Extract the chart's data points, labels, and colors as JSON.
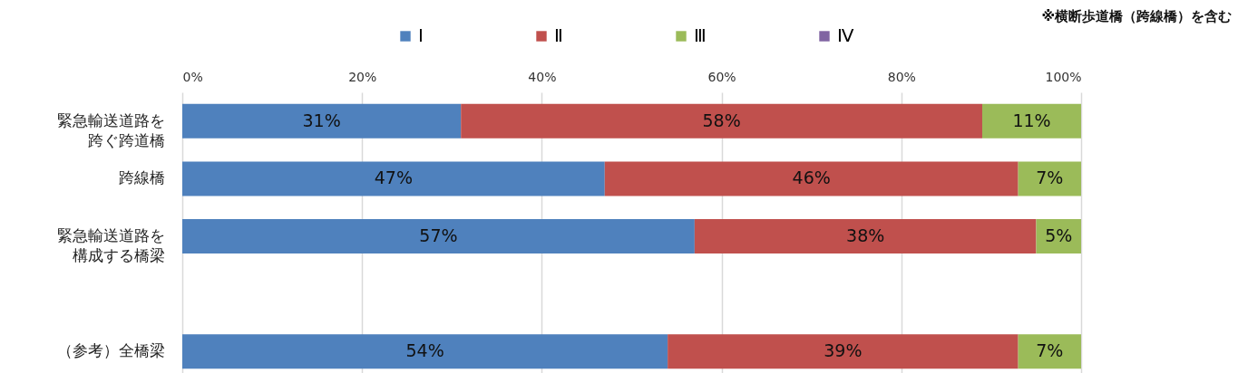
{
  "chart_data": {
    "type": "bar",
    "orientation": "horizontal",
    "stacked": true,
    "annotations": [
      "※横断歩道橋（跨線橋）を含む"
    ],
    "categories": [
      "緊急輸送道路を跨ぐ跨道橋",
      "跨線橋",
      "緊急輸送道路を構成する橋梁",
      null,
      "（参考）全橋梁"
    ],
    "series": [
      {
        "name": "Ⅰ",
        "color": "#4f81bd",
        "values": [
          31,
          47,
          57,
          null,
          54
        ],
        "value_labels": [
          "31%",
          "47%",
          "57%",
          null,
          "54%"
        ]
      },
      {
        "name": "Ⅱ",
        "color": "#c0504d",
        "values": [
          58,
          46,
          38,
          null,
          39
        ],
        "value_labels": [
          "58%",
          "46%",
          "38%",
          null,
          "39%"
        ]
      },
      {
        "name": "Ⅲ",
        "color": "#9bbb59",
        "values": [
          11,
          7,
          5,
          null,
          7
        ],
        "value_labels": [
          "11%",
          "7%",
          "5%",
          null,
          "7%"
        ]
      },
      {
        "name": "Ⅳ",
        "color": "#8064a2",
        "values": [
          0,
          0,
          0,
          null,
          0
        ],
        "value_labels": [
          null,
          null,
          null,
          null,
          null
        ]
      }
    ],
    "xlim": [
      0,
      100
    ],
    "xticks": [
      {
        "value": 0,
        "label": "0%"
      },
      {
        "value": 20,
        "label": "20%"
      },
      {
        "value": 40,
        "label": "40%"
      },
      {
        "value": 60,
        "label": "60%"
      },
      {
        "value": 80,
        "label": "80%"
      },
      {
        "value": 100,
        "label": "100%"
      }
    ],
    "grid": true,
    "legend": "top"
  }
}
